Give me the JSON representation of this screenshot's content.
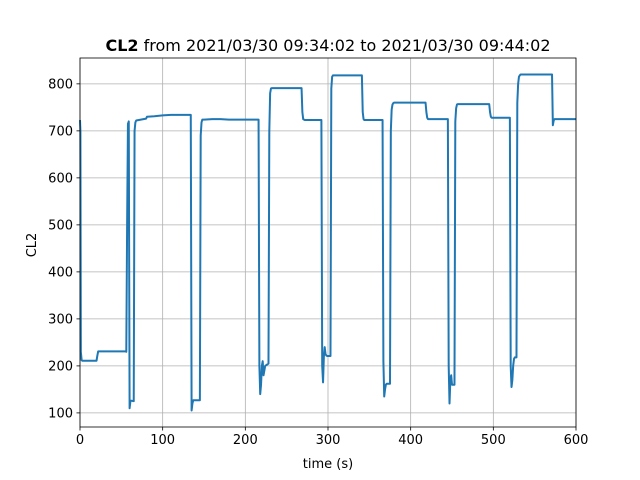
{
  "chart_data": {
    "type": "line",
    "title_bold": "CL2",
    "title_rest": " from 2021/03/30 09:34:02 to 2021/03/30 09:44:02",
    "xlabel": "time (s)",
    "ylabel": "CL2",
    "xlim": [
      0,
      600
    ],
    "ylim": [
      70,
      855
    ],
    "xticks": [
      0,
      100,
      200,
      300,
      400,
      500,
      600
    ],
    "yticks": [
      100,
      200,
      300,
      400,
      500,
      600,
      700,
      800
    ],
    "grid": true,
    "series": [
      {
        "color": "#1f77b4",
        "x": [
          0,
          0.5,
          1,
          2,
          3,
          20,
          21,
          22,
          55,
          56,
          57,
          58,
          59,
          60,
          61,
          62,
          65,
          66,
          67,
          68,
          80,
          81,
          90,
          100,
          110,
          120,
          134,
          135,
          136,
          137,
          138,
          145,
          146,
          147,
          148,
          150,
          160,
          170,
          180,
          200,
          216,
          217,
          218,
          219,
          220,
          221,
          222,
          223,
          224,
          228,
          229,
          230,
          231,
          232,
          233,
          245,
          268,
          269,
          270,
          271,
          272,
          273,
          280,
          292,
          293,
          294,
          295,
          296,
          297,
          298,
          299,
          303,
          304,
          305,
          306,
          308,
          320,
          335,
          341,
          342,
          343,
          344,
          345,
          360,
          366,
          367,
          368,
          369,
          370,
          371,
          372,
          375,
          376,
          377,
          378,
          379,
          380,
          382,
          400,
          418,
          419,
          420,
          421,
          422,
          445,
          446,
          447,
          448,
          449,
          450,
          451,
          453,
          454,
          455,
          456,
          457,
          458,
          460,
          475,
          495,
          496,
          497,
          498,
          500,
          520,
          521,
          522,
          523,
          524,
          525,
          526,
          527,
          528,
          529,
          530,
          531,
          532,
          533,
          535,
          555,
          571,
          572,
          573,
          574,
          576,
          590,
          600
        ],
        "y": [
          723,
          700,
          230,
          212,
          211,
          211,
          222,
          231,
          231,
          230,
          500,
          715,
          720,
          110,
          125,
          126,
          125,
          700,
          718,
          722,
          726,
          730,
          731,
          733,
          734,
          734,
          734,
          105,
          120,
          127,
          127,
          127,
          690,
          718,
          724,
          724,
          725,
          725,
          724,
          724,
          724,
          200,
          140,
          160,
          200,
          210,
          180,
          190,
          200,
          205,
          700,
          780,
          790,
          791,
          791,
          791,
          791,
          740,
          725,
          724,
          723,
          723,
          723,
          723,
          200,
          165,
          220,
          240,
          225,
          222,
          221,
          221,
          790,
          815,
          818,
          818,
          818,
          818,
          818,
          740,
          725,
          723,
          723,
          723,
          723,
          210,
          135,
          150,
          160,
          162,
          162,
          162,
          700,
          745,
          756,
          759,
          760,
          760,
          760,
          760,
          740,
          728,
          725,
          725,
          725,
          200,
          120,
          170,
          180,
          160,
          160,
          160,
          720,
          748,
          756,
          757,
          757,
          757,
          757,
          757,
          740,
          730,
          728,
          728,
          728,
          200,
          155,
          170,
          200,
          215,
          218,
          218,
          218,
          760,
          800,
          815,
          818,
          820,
          820,
          820,
          820,
          712,
          722,
          725,
          725,
          725,
          725
        ]
      }
    ]
  }
}
